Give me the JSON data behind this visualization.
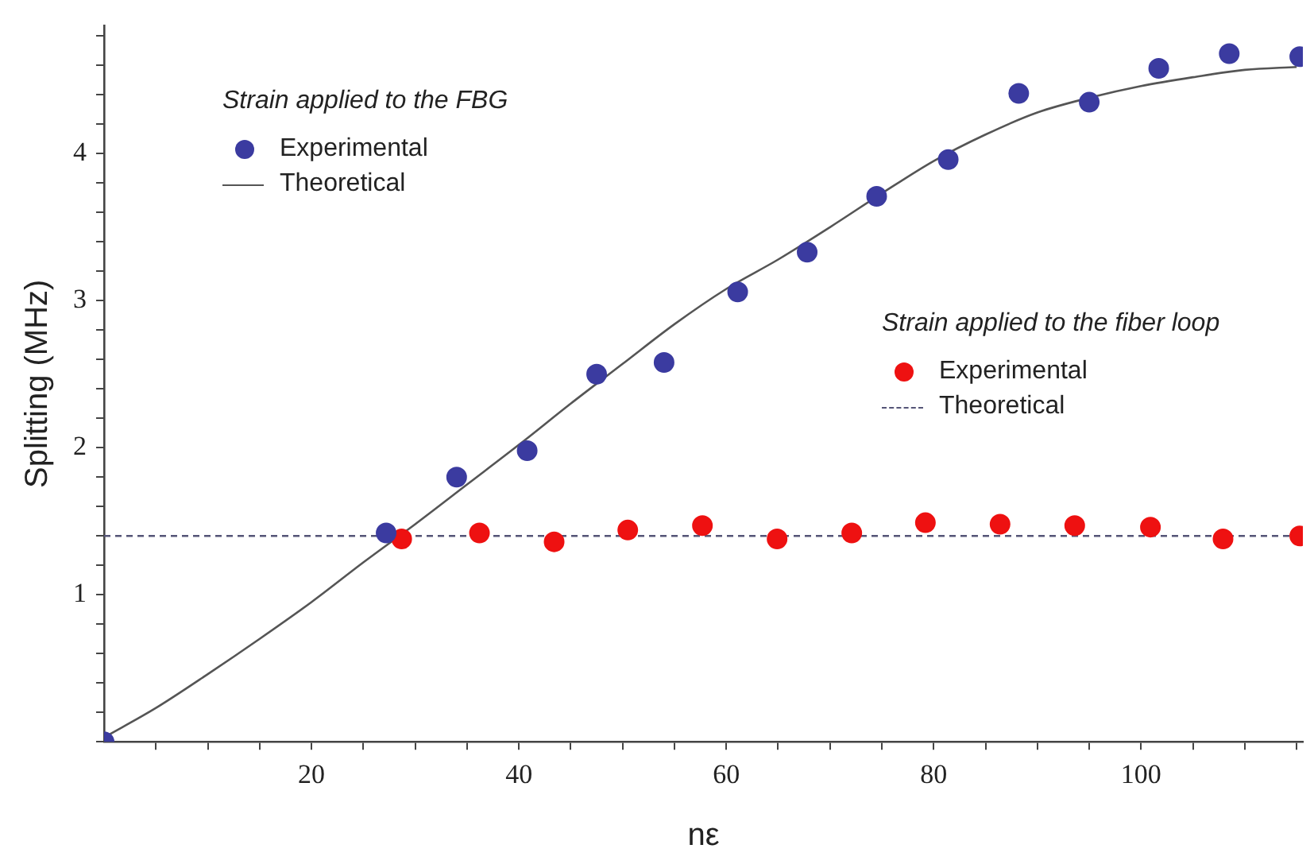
{
  "chart_data": {
    "type": "scatter",
    "xlabel": "nε",
    "ylabel": "Splitting (MHz)",
    "annotations": [
      "Strain applied to the FBG",
      "Strain applied to the fiber loop"
    ],
    "xlim": [
      0,
      115.6
    ],
    "ylim": [
      0,
      4.87
    ],
    "xticks": [
      {
        "value": 5,
        "label": null
      },
      {
        "value": 10,
        "label": null
      },
      {
        "value": 15,
        "label": null
      },
      20,
      {
        "value": 25,
        "label": null
      },
      {
        "value": 30,
        "label": null
      },
      {
        "value": 35,
        "label": null
      },
      40,
      {
        "value": 45,
        "label": null
      },
      {
        "value": 50,
        "label": null
      },
      {
        "value": 55,
        "label": null
      },
      60,
      {
        "value": 65,
        "label": null
      },
      {
        "value": 70,
        "label": null
      },
      {
        "value": 75,
        "label": null
      },
      80,
      {
        "value": 85,
        "label": null
      },
      {
        "value": 90,
        "label": null
      },
      {
        "value": 95,
        "label": null
      },
      100,
      {
        "value": 105,
        "label": null
      },
      {
        "value": 110,
        "label": null
      },
      {
        "value": 115,
        "label": null
      }
    ],
    "yticks": [
      {
        "value": 0,
        "label": null
      },
      {
        "value": 0.2,
        "label": null
      },
      {
        "value": 0.4,
        "label": null
      },
      {
        "value": 0.6,
        "label": null
      },
      {
        "value": 0.8,
        "label": null
      },
      1,
      {
        "value": 1.2,
        "label": null
      },
      {
        "value": 1.4,
        "label": null
      },
      {
        "value": 1.6,
        "label": null
      },
      {
        "value": 1.8,
        "label": null
      },
      2,
      {
        "value": 2.2,
        "label": null
      },
      {
        "value": 2.4,
        "label": null
      },
      {
        "value": 2.6,
        "label": null
      },
      {
        "value": 2.8,
        "label": null
      },
      3,
      {
        "value": 3.2,
        "label": null
      },
      {
        "value": 3.4,
        "label": null
      },
      {
        "value": 3.6,
        "label": null
      },
      {
        "value": 3.8,
        "label": null
      },
      4,
      {
        "value": 4.2,
        "label": null
      },
      {
        "value": 4.4,
        "label": null
      },
      {
        "value": 4.6,
        "label": null
      },
      {
        "value": 4.8,
        "label": null
      }
    ],
    "legend": "top left",
    "marker": "circle",
    "series": [
      {
        "name": "Experimental",
        "color": "#3b3ba0",
        "x": [
          0,
          27.2,
          34.0,
          40.8,
          47.5,
          54.0,
          61.1,
          67.8,
          74.5,
          81.4,
          88.2,
          95.0,
          101.7,
          108.5,
          115.3
        ],
        "values": [
          0,
          1.42,
          1.8,
          1.98,
          2.5,
          2.58,
          3.06,
          3.33,
          3.71,
          3.96,
          4.41,
          4.35,
          4.58,
          4.68,
          4.66
        ]
      },
      {
        "name": "Theoretical",
        "type": "line",
        "color": "#555555",
        "line_style": "solid",
        "marker": "none",
        "x": [
          0,
          5,
          10,
          15,
          20,
          25,
          30,
          35,
          40,
          45,
          50,
          55,
          60,
          65,
          70,
          75,
          80,
          85,
          90,
          95,
          100,
          105,
          110,
          115
        ],
        "values": [
          0.03,
          0.23,
          0.46,
          0.7,
          0.95,
          1.22,
          1.48,
          1.75,
          2.02,
          2.3,
          2.57,
          2.84,
          3.08,
          3.28,
          3.5,
          3.73,
          3.95,
          4.13,
          4.28,
          4.38,
          4.46,
          4.52,
          4.57,
          4.59
        ]
      },
      {
        "name": "Experimental",
        "color": "#ee1111",
        "x": [
          28.7,
          36.2,
          43.4,
          50.5,
          57.7,
          64.9,
          72.1,
          79.2,
          86.4,
          93.6,
          100.9,
          107.9,
          115.3
        ],
        "values": [
          1.38,
          1.42,
          1.36,
          1.44,
          1.47,
          1.38,
          1.42,
          1.49,
          1.48,
          1.47,
          1.46,
          1.38,
          1.4
        ]
      },
      {
        "name": "Theoretical",
        "type": "line",
        "color": "#555577",
        "line_style": "dashed",
        "marker": "none",
        "x": [
          0,
          115.6
        ],
        "values": [
          1.4,
          1.4
        ]
      }
    ]
  }
}
